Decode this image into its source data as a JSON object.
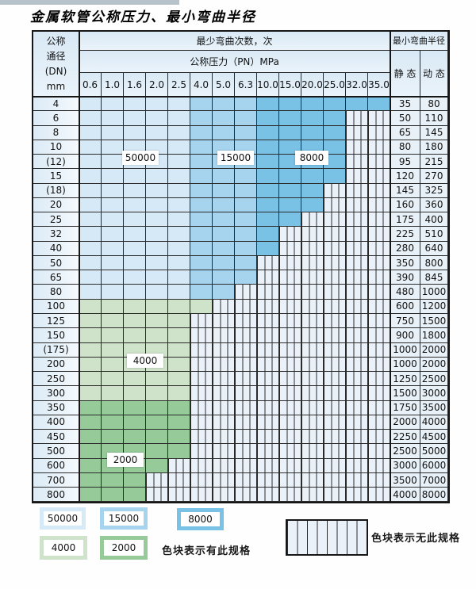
{
  "title": "金属软管公称压力、最小弯曲半径",
  "table": {
    "header": {
      "dn_lines": [
        "公称",
        "通径",
        "(DN)",
        "mm"
      ],
      "bend_times": "最少弯曲次数，次",
      "pressure_header": "公称压力（PN）MPa",
      "radius_header": "最小弯曲半径",
      "static_label": "静 态",
      "dynamic_label": "动 态",
      "pressures": [
        "0.6",
        "1.0",
        "1.6",
        "2.0",
        "2.5",
        "4.0",
        "5.0",
        "6.3",
        "10.0",
        "15.0",
        "20.0",
        "25.0",
        "32.0",
        "35.0"
      ]
    },
    "rows": [
      {
        "dn": "4",
        "family": "blue",
        "colored_through": "35.0",
        "static": "35",
        "dynamic": "80"
      },
      {
        "dn": "6",
        "family": "blue",
        "colored_through": "25.0",
        "static": "50",
        "dynamic": "110"
      },
      {
        "dn": "8",
        "family": "blue",
        "colored_through": "25.0",
        "static": "65",
        "dynamic": "145"
      },
      {
        "dn": "10",
        "family": "blue",
        "colored_through": "25.0",
        "static": "80",
        "dynamic": "180"
      },
      {
        "dn": "(12)",
        "family": "blue",
        "colored_through": "25.0",
        "static": "95",
        "dynamic": "215"
      },
      {
        "dn": "15",
        "family": "blue",
        "colored_through": "25.0",
        "static": "120",
        "dynamic": "270"
      },
      {
        "dn": "(18)",
        "family": "blue",
        "colored_through": "20.0",
        "static": "145",
        "dynamic": "325"
      },
      {
        "dn": "20",
        "family": "blue",
        "colored_through": "20.0",
        "static": "160",
        "dynamic": "360"
      },
      {
        "dn": "25",
        "family": "blue",
        "colored_through": "15.0",
        "static": "175",
        "dynamic": "400"
      },
      {
        "dn": "32",
        "family": "blue",
        "colored_through": "10.0",
        "static": "225",
        "dynamic": "510"
      },
      {
        "dn": "40",
        "family": "blue",
        "colored_through": "10.0",
        "static": "280",
        "dynamic": "640"
      },
      {
        "dn": "50",
        "family": "blue",
        "colored_through": "6.3",
        "static": "350",
        "dynamic": "800"
      },
      {
        "dn": "65",
        "family": "blue",
        "colored_through": "6.3",
        "static": "390",
        "dynamic": "845"
      },
      {
        "dn": "80",
        "family": "blue",
        "colored_through": "5.0",
        "static": "480",
        "dynamic": "1000"
      },
      {
        "dn": "100",
        "family": "green",
        "colored_through": "4.0",
        "static": "600",
        "dynamic": "1200"
      },
      {
        "dn": "125",
        "family": "green",
        "colored_through": "2.5",
        "static": "750",
        "dynamic": "1500"
      },
      {
        "dn": "150",
        "family": "green",
        "colored_through": "2.5",
        "static": "900",
        "dynamic": "1800"
      },
      {
        "dn": "(175)",
        "family": "green",
        "colored_through": "2.5",
        "static": "1000",
        "dynamic": "2000"
      },
      {
        "dn": "200",
        "family": "green",
        "colored_through": "2.5",
        "static": "1000",
        "dynamic": "2000"
      },
      {
        "dn": "250",
        "family": "green",
        "colored_through": "2.5",
        "static": "1250",
        "dynamic": "2500"
      },
      {
        "dn": "300",
        "family": "green",
        "colored_through": "2.5",
        "static": "1500",
        "dynamic": "3000"
      },
      {
        "dn": "350",
        "family": "green",
        "colored_through": "2.5",
        "static": "1750",
        "dynamic": "3500"
      },
      {
        "dn": "400",
        "family": "green",
        "colored_through": "2.5",
        "static": "2000",
        "dynamic": "4000"
      },
      {
        "dn": "450",
        "family": "green",
        "colored_through": "2.5",
        "static": "2250",
        "dynamic": "4500"
      },
      {
        "dn": "500",
        "family": "green",
        "colored_through": "2.5",
        "static": "2500",
        "dynamic": "5000"
      },
      {
        "dn": "600",
        "family": "green",
        "colored_through": "2.0",
        "static": "3000",
        "dynamic": "6000"
      },
      {
        "dn": "700",
        "family": "green",
        "colored_through": "1.6",
        "static": "3500",
        "dynamic": "7000"
      },
      {
        "dn": "800",
        "family": "green",
        "colored_through": "1.6",
        "static": "4000",
        "dynamic": "8000"
      }
    ]
  },
  "zone_bands": {
    "blue": [
      {
        "count": "50000",
        "last_col_index": 4
      },
      {
        "count": "15000",
        "last_col_index": 7
      },
      {
        "count": "8000",
        "last_col_index": 13
      }
    ],
    "green_4000_rows": [
      "100",
      "125",
      "150",
      "(175)",
      "200",
      "250",
      "300"
    ],
    "green_2000_rows": [
      "350",
      "400",
      "450",
      "500",
      "600",
      "700",
      "800"
    ]
  },
  "counts": {
    "n50000": "50000",
    "n15000": "15000",
    "n8000": "8000",
    "n4000": "4000",
    "n2000": "2000"
  },
  "colors": {
    "c50000": "#d6e9f6",
    "c15000": "#a6d4ee",
    "c8000": "#79c1e5",
    "c4000": "#cfe3cb",
    "c2000": "#96ca98",
    "hatch_bg": "#ebf1f8",
    "hatch_line": "#2b2b2b"
  },
  "legend": {
    "has_spec": "色块表示有此规格",
    "no_spec": "色块表示无此规格"
  }
}
